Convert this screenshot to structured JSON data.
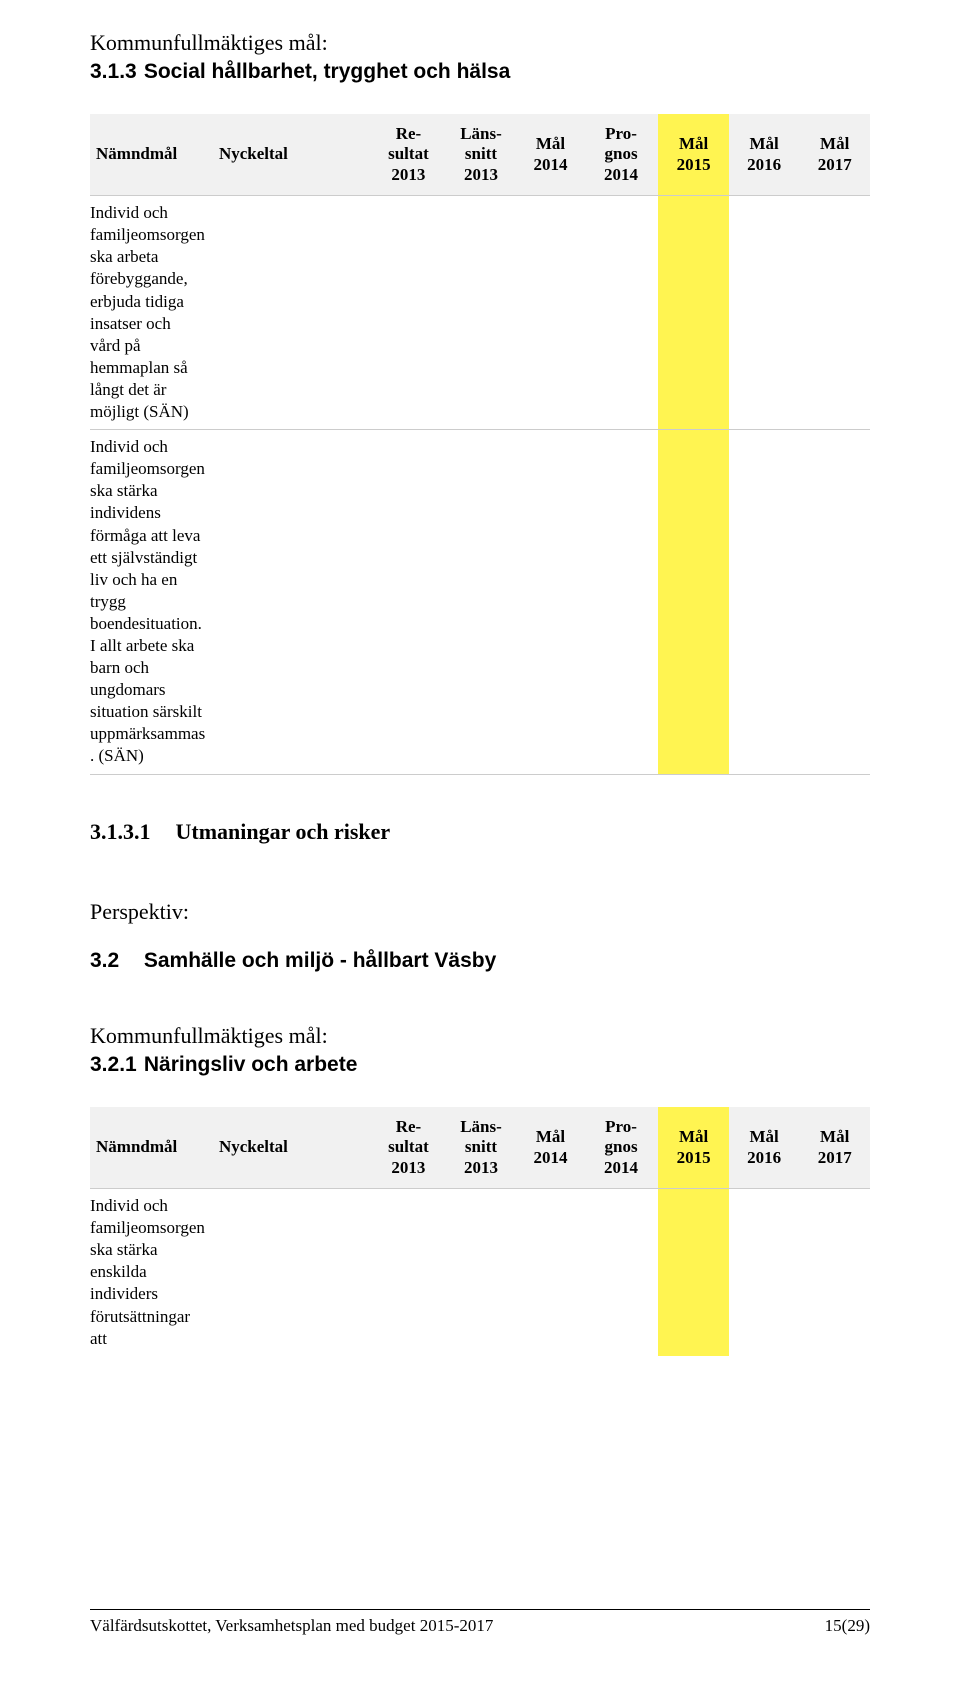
{
  "kf_label": "Kommunfullmäktiges mål:",
  "s313": {
    "num": "3.1.3",
    "title": "Social hållbarhet, trygghet och hälsa"
  },
  "columns": {
    "namndmal": "Nämndmål",
    "nyckeltal": "Nyckeltal",
    "resultat": "Re-\nsultat\n2013",
    "lanssnitt": "Läns-\nsnitt\n2013",
    "mal2014": "Mål\n2014",
    "prognos": "Pro-\ngnos\n2014",
    "mal2015": "Mål\n2015",
    "mal2016": "Mål\n2016",
    "mal2017": "Mål\n2017"
  },
  "table1": {
    "rows": [
      {
        "namndmal": "Individ och familjeomsorgen ska arbeta förebyggande, erbjuda tidiga insatser och vård på hemmaplan så långt det är möjligt (SÄN)"
      },
      {
        "namndmal": "Individ och familjeomsorgen ska stärka individens förmåga att leva ett självständigt liv och ha en trygg boendesituation. I allt arbete ska barn och ungdomars situation särskilt uppmärksammas . (SÄN)"
      }
    ]
  },
  "s3131": {
    "num": "3.1.3.1",
    "title": "Utmaningar och risker"
  },
  "persp_label": "Perspektiv:",
  "s32": {
    "num": "3.2",
    "title": "Samhälle och miljö - hållbart Väsby"
  },
  "s321": {
    "num": "3.2.1",
    "title": "Näringsliv och arbete"
  },
  "table2": {
    "rows": [
      {
        "namndmal": "Individ och familjeomsorgen ska stärka enskilda individers förutsättningar att"
      }
    ]
  },
  "footer": {
    "left": "Välfärdsutskottet, Verksamhetsplan med budget 2015-2017",
    "right": "15(29)"
  },
  "colors": {
    "header_bg": "#f1f1f1",
    "highlight": "#fff451",
    "border": "#cccccc",
    "text": "#000000",
    "background": "#ffffff"
  }
}
